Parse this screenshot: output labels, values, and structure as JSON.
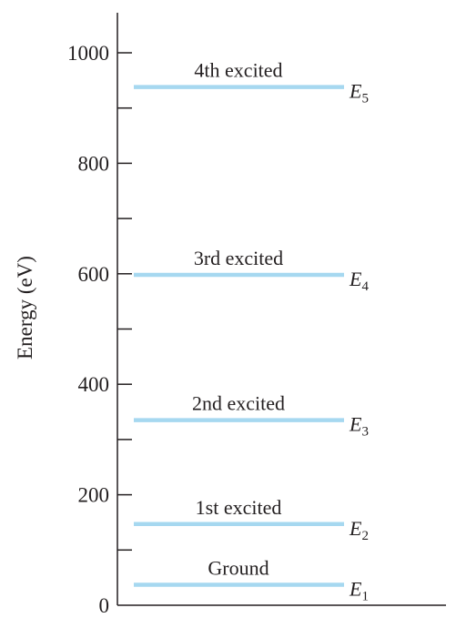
{
  "chart_data": {
    "type": "energy-level-diagram",
    "ylabel": "Energy (eV)",
    "ylim": [
      0,
      1000
    ],
    "major_ticks": [
      0,
      200,
      400,
      600,
      800,
      1000
    ],
    "minor_ticks": [
      100,
      300,
      500,
      700,
      900
    ],
    "tick_labels": [
      "0",
      "200",
      "400",
      "600",
      "800",
      "1000"
    ],
    "level_color": "#a6d8f0",
    "levels": [
      {
        "label": "Ground",
        "symbol": "E",
        "subscript": "1",
        "energy": 37
      },
      {
        "label": "1st excited",
        "symbol": "E",
        "subscript": "2",
        "energy": 147
      },
      {
        "label": "2nd excited",
        "symbol": "E",
        "subscript": "3",
        "energy": 335
      },
      {
        "label": "3rd excited",
        "symbol": "E",
        "subscript": "4",
        "energy": 598
      },
      {
        "label": "4th excited",
        "symbol": "E",
        "subscript": "5",
        "energy": 938
      }
    ]
  }
}
